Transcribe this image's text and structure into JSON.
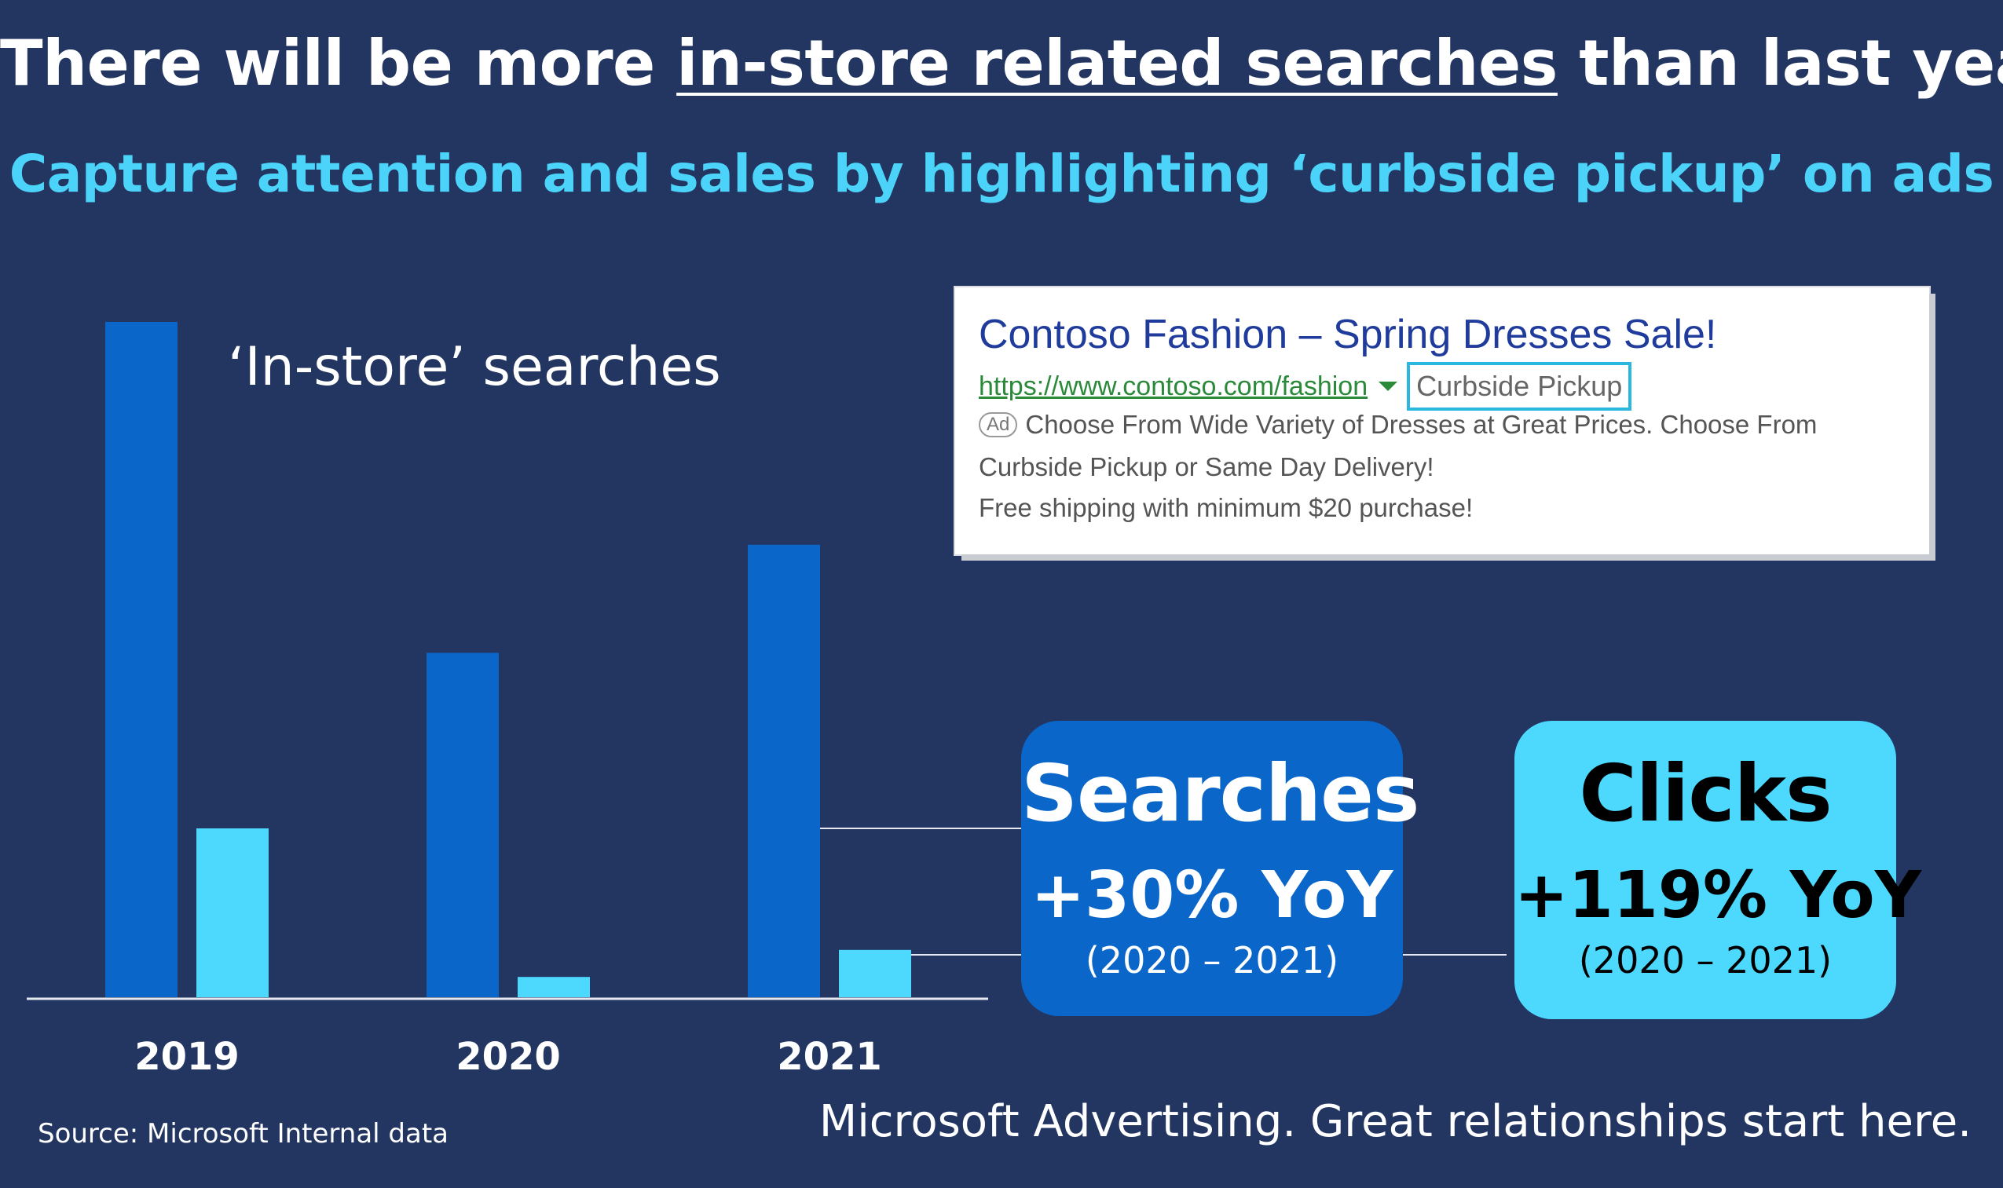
{
  "header": {
    "title_before": "There will be more ",
    "title_underlined": "in-store related searches",
    "title_after": " than last year",
    "subtitle": "Capture attention and sales by highlighting ‘curbside pickup’ on ads"
  },
  "chart_data": {
    "type": "bar",
    "label": "‘In-store’ searches",
    "categories": [
      "2019",
      "2020",
      "2021"
    ],
    "series": [
      {
        "values": [
          100,
          51,
          67
        ],
        "color": "#0a66c9"
      },
      {
        "values": [
          25,
          3,
          7
        ],
        "color": "#4dd8fe"
      }
    ],
    "ylim": [
      0,
      100
    ],
    "grid": false
  },
  "ad": {
    "title": "Contoso Fashion – Spring Dresses Sale!",
    "url": "https://www.contoso.com/fashion",
    "pickup": "Curbside Pickup",
    "badge": "Ad",
    "line1": "Choose From Wide Variety of Dresses at Great Prices. Choose From",
    "line2": "Curbside Pickup or Same Day Delivery!",
    "line3": "Free shipping with minimum  $20 purchase!"
  },
  "stats": {
    "searches": {
      "label": "Searches",
      "value": "+30% YoY",
      "range": "(2020 – 2021)"
    },
    "clicks": {
      "label": "Clicks",
      "value": "+119% YoY",
      "range": "(2020 – 2021)"
    }
  },
  "footer": {
    "source": "Source: Microsoft Internal data",
    "tagline": "Microsoft Advertising. Great relationships start here."
  }
}
